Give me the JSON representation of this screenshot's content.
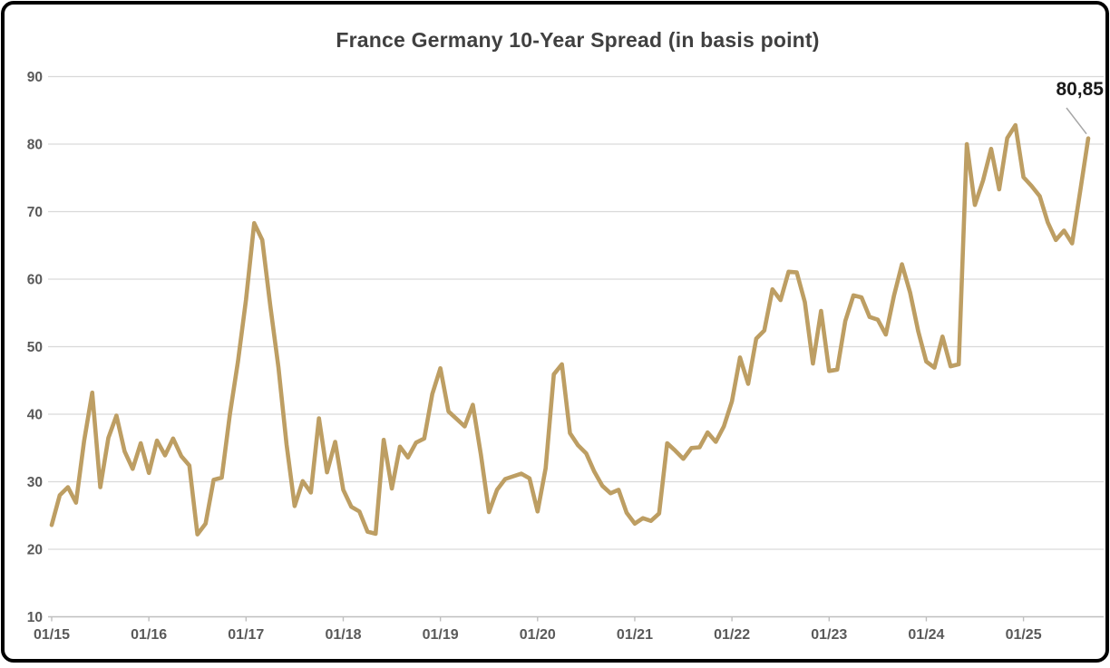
{
  "chart": {
    "title": "France Germany 10-Year Spread (in basis point)"
  },
  "chart_data": {
    "type": "line",
    "title": "France Germany 10-Year Spread (in basis point)",
    "series_name": "France Germany 10-Year Spread",
    "unit": "basis points",
    "x_frequency": "monthly",
    "x_start_month": "01/2015",
    "x_tick_labels": [
      "01/15",
      "01/16",
      "01/17",
      "01/18",
      "01/19",
      "01/20",
      "01/21",
      "01/22",
      "01/23",
      "01/24",
      "01/25"
    ],
    "y_ticks": [
      90,
      80,
      70,
      60,
      50,
      40,
      30,
      20,
      10
    ],
    "ylim": [
      10,
      90
    ],
    "grid": true,
    "legend": "none",
    "line_color": "#BD9E63",
    "last_value_label": "80,85",
    "last_value": 80.85,
    "values": [
      23.6,
      28.0,
      29.2,
      26.9,
      36.0,
      43.2,
      29.2,
      36.5,
      39.8,
      34.5,
      31.9,
      35.7,
      31.3,
      36.1,
      33.9,
      36.4,
      33.8,
      32.4,
      22.2,
      23.8,
      30.3,
      30.6,
      40.0,
      47.8,
      57.0,
      68.3,
      65.8,
      56.0,
      47.0,
      35.5,
      26.4,
      30.1,
      28.4,
      39.4,
      31.4,
      35.9,
      28.8,
      26.3,
      25.6,
      22.6,
      22.3,
      36.2,
      29.0,
      35.2,
      33.6,
      35.8,
      36.4,
      43.0,
      46.8,
      40.4,
      39.3,
      38.2,
      41.4,
      34.0,
      25.5,
      28.8,
      30.4,
      30.8,
      31.2,
      30.5,
      25.6,
      32.0,
      45.9,
      47.4,
      37.2,
      35.4,
      34.2,
      31.5,
      29.4,
      28.3,
      28.8,
      25.4,
      23.8,
      24.6,
      24.2,
      25.3,
      35.7,
      34.6,
      33.4,
      35.0,
      35.1,
      37.3,
      35.9,
      38.2,
      41.9,
      48.4,
      44.5,
      51.2,
      52.4,
      58.5,
      56.9,
      61.1,
      61.0,
      56.6,
      47.5,
      55.3,
      46.4,
      46.6,
      53.8,
      57.6,
      57.3,
      54.4,
      54.0,
      51.8,
      57.5,
      62.2,
      58.0,
      52.3,
      47.8,
      46.9,
      51.5,
      47.1,
      47.4,
      80.0,
      71.0,
      74.6,
      79.3,
      73.3,
      80.9,
      82.8,
      75.1,
      73.8,
      72.3,
      68.4,
      65.8,
      67.2,
      65.3,
      73.0,
      80.85
    ]
  }
}
